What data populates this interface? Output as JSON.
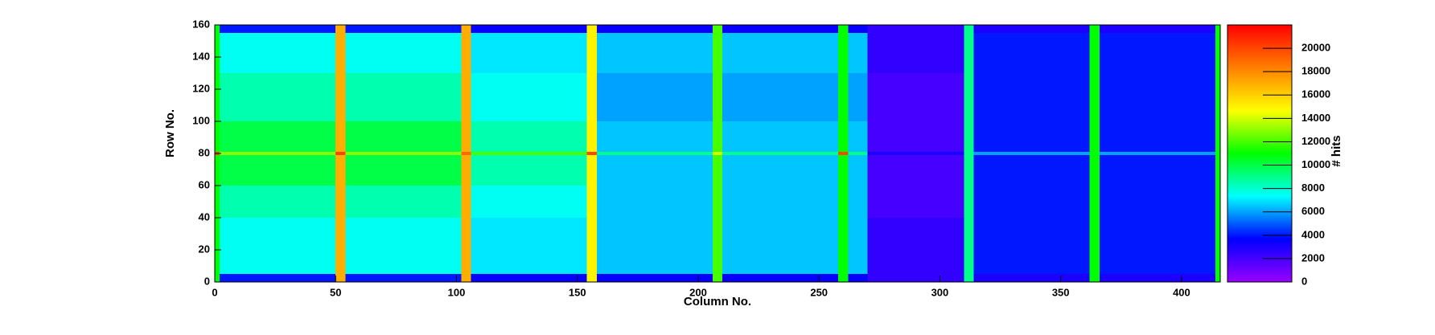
{
  "chart_data": {
    "type": "heatmap",
    "x_label": "Column No.",
    "y_label": "Row No.",
    "z_label": "# hits",
    "xbins": [
      0,
      2,
      50,
      54,
      102,
      106,
      154,
      158,
      206,
      210,
      258,
      262,
      270,
      310,
      314,
      362,
      366,
      414,
      416
    ],
    "ybins": [
      0,
      5,
      40,
      60,
      79,
      81,
      100,
      130,
      155,
      160
    ],
    "values": [
      [
        11000,
        4000,
        17000,
        4000,
        17000,
        3500,
        15000,
        3500,
        12000,
        3500,
        11000,
        3500,
        2500,
        9000,
        3000,
        11000,
        3000,
        11000
      ],
      [
        11000,
        7500,
        17000,
        7500,
        17000,
        7000,
        15000,
        6500,
        12000,
        6500,
        11000,
        6500,
        2500,
        9000,
        4000,
        11000,
        4000,
        11000
      ],
      [
        11000,
        8500,
        17000,
        8500,
        17000,
        7500,
        15000,
        6500,
        12000,
        6500,
        11000,
        6500,
        2000,
        9000,
        4000,
        11000,
        4000,
        11000
      ],
      [
        11000,
        10000,
        17000,
        10000,
        17000,
        8500,
        15000,
        6500,
        12000,
        6500,
        11000,
        6500,
        2000,
        9000,
        4000,
        11000,
        4000,
        11000
      ],
      [
        20000,
        13000,
        20000,
        13000,
        19000,
        12000,
        20000,
        9000,
        14000,
        9000,
        20000,
        9000,
        3000,
        9000,
        6000,
        11000,
        6000,
        11000
      ],
      [
        11000,
        10000,
        17000,
        10000,
        17000,
        8500,
        15000,
        6500,
        12000,
        6500,
        11000,
        6500,
        2000,
        9000,
        4000,
        11000,
        4000,
        11000
      ],
      [
        11000,
        8500,
        17000,
        8500,
        17000,
        7500,
        15000,
        6000,
        12000,
        6000,
        11000,
        6000,
        2000,
        9000,
        4000,
        11000,
        4000,
        11000
      ],
      [
        11000,
        7500,
        17000,
        7500,
        17000,
        7000,
        15000,
        6500,
        12000,
        6500,
        11000,
        6500,
        2500,
        9000,
        4000,
        11000,
        4000,
        11000
      ],
      [
        11000,
        4000,
        17000,
        4000,
        17000,
        3500,
        15000,
        3500,
        12000,
        3500,
        11000,
        3500,
        2500,
        9000,
        3000,
        11000,
        3000,
        11000
      ]
    ],
    "xlim": [
      0,
      416
    ],
    "ylim": [
      0,
      160
    ],
    "zlim": [
      0,
      22000
    ],
    "xticks": [
      0,
      50,
      100,
      150,
      200,
      250,
      300,
      350,
      400
    ],
    "yticks": [
      0,
      20,
      40,
      60,
      80,
      100,
      120,
      140,
      160
    ],
    "zticks": [
      0,
      2000,
      4000,
      6000,
      8000,
      10000,
      12000,
      14000,
      16000,
      18000,
      20000
    ],
    "colormap": [
      "#9900ff",
      "#0000ff",
      "#00ffff",
      "#00ff00",
      "#ffff00",
      "#ff8000",
      "#ff0000"
    ]
  }
}
